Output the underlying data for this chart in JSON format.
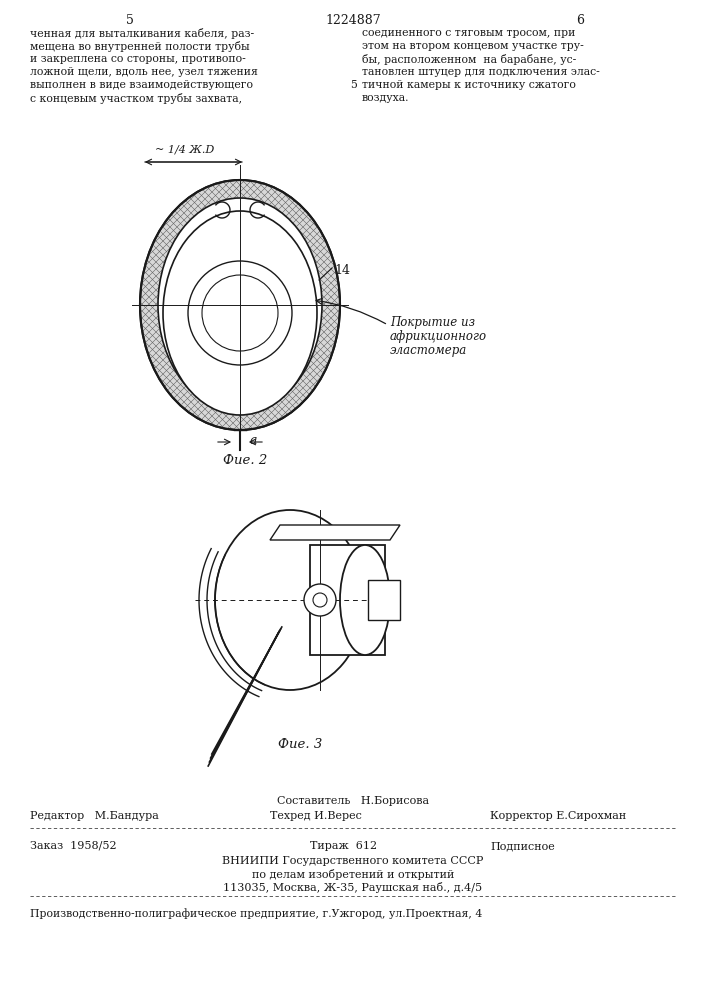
{
  "page_number_left": "5",
  "patent_number": "1224887",
  "page_number_right": "6",
  "text_left_lines": [
    "ченная для выталкивания кабеля, раз-",
    "мещена во внутренней полости трубы",
    "и закреплена со стороны, противопо-",
    "ложной щели, вдоль нее, узел тяжения",
    "выполнен в виде взаимодействующего",
    "с концевым участком трубы захвата,"
  ],
  "text_right_lines": [
    "соединенного с тяговым тросом, при",
    "этом на втором концевом участке тру-",
    "бы, расположенном  на барабане, ус-",
    "тановлен штуцер для подключения элас-",
    "тичной камеры к источнику сжатого",
    "воздуха."
  ],
  "line_number_5": "5",
  "fig2_label": "Фие. 2",
  "fig3_label": "Фие. 3",
  "dim_label": "~ 1/4 Ж.D",
  "label_14": "14",
  "label_a": "a",
  "annotation_line1": "Покрытие из",
  "annotation_line2": "африкционного",
  "annotation_line3": "эластомера",
  "footer_sestavitel": "Составитель   Н.Борисова",
  "footer_redaktor_label": "Редактор",
  "footer_redaktor_name": "М.Бандура",
  "footer_tehred_label": "Техред",
  "footer_tehred_name": "И.Верес",
  "footer_korrektor_label": "Корректор",
  "footer_korrektor_name": "Е.Сирохман",
  "footer_zakaz_label": "Заказ",
  "footer_zakaz_val": "1958/52",
  "footer_tiraz_label": "Тираж",
  "footer_tiraz_val": "612",
  "footer_podpisnoe": "Подписное",
  "footer_vniiipi": "ВНИИПИ Государственного комитета СССР",
  "footer_po_delam": "по делам изобретений и открытий",
  "footer_address": "113035, Москва, Ж-35, Раушская наб., д.4/5",
  "footer_proizv": "Производственно-полиграфическое предприятие, г.Ужгород, ул.Проектная, 4",
  "bg_color": "#ffffff",
  "text_color": "#1a1a1a",
  "line_color": "#1a1a1a"
}
